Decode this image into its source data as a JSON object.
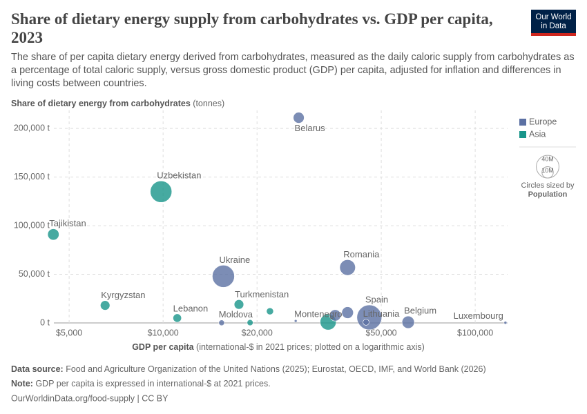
{
  "chart_data": {
    "type": "scatter",
    "title": "Share of dietary energy supply from carbohydrates vs. GDP per capita, 2023",
    "subtitle": "The share of per capita dietary energy derived from carbohydrates, measured as the daily caloric supply from carbohydrates as a percentage of total caloric supply, versus gross domestic product (GDP) per capita, adjusted for inflation and differences in living costs between countries.",
    "logo": [
      "Our World",
      "in Data"
    ],
    "y_label": "Share of dietary energy from carbohydrates",
    "y_unit": " (tonnes)",
    "x_label": "GDP per capita",
    "x_unit": " (international-$ in 2021 prices; plotted on a logarithmic axis)",
    "x_log": true,
    "grid": true,
    "xlim": [
      4467,
      127000
    ],
    "ylim": [
      0,
      215000
    ],
    "xticks": [
      {
        "value": 5000,
        "label": "$5,000"
      },
      {
        "value": 10000,
        "label": "$10,000"
      },
      {
        "value": 20000,
        "label": "$20,000"
      },
      {
        "value": 50000,
        "label": "$50,000"
      },
      {
        "value": 100000,
        "label": "$100,000"
      }
    ],
    "yticks": [
      {
        "value": 0,
        "label": "0 t"
      },
      {
        "value": 50000,
        "label": "50,000 t"
      },
      {
        "value": 100000,
        "label": "100,000 t"
      },
      {
        "value": 150000,
        "label": "150,000 t"
      },
      {
        "value": 200000,
        "label": "200,000 t"
      }
    ],
    "legend": "right",
    "series": [
      {
        "name": "Europe",
        "color": "#5b70a3",
        "labels": [
          "Belarus",
          "Ukraine",
          "Romania",
          "Moldova",
          "Montenegro",
          null,
          null,
          "Spain",
          "Lithuania",
          "Belgium",
          "Luxembourg"
        ],
        "x": [
          27200,
          15600,
          39000,
          15400,
          26600,
          35600,
          39000,
          45800,
          44700,
          61000,
          125000
        ],
        "values": [
          211000,
          48000,
          57000,
          100,
          2000,
          7800,
          10600,
          5700,
          700,
          700,
          200
        ],
        "sizes": [
          9.2,
          38,
          19,
          2.5,
          0.6,
          10,
          10.5,
          48,
          2.9,
          11.8,
          0.65
        ]
      },
      {
        "name": "Asia",
        "color": "#18958a",
        "labels": [
          "Uzbekistan",
          "Tajikistan",
          "Kyrgyzstan",
          "Turkmenistan",
          "Lebanon",
          null,
          null,
          null
        ],
        "x": [
          9850,
          4450,
          6520,
          17500,
          11100,
          19000,
          22000,
          33800
        ],
        "values": [
          135000,
          91000,
          18000,
          19000,
          5000,
          300,
          12000,
          1000
        ],
        "sizes": [
          36,
          10,
          7,
          7,
          5.5,
          2.8,
          3.8,
          20
        ]
      }
    ],
    "size_legend": {
      "values": [
        {
          "value": 40,
          "label": "40M"
        },
        {
          "value": 10,
          "label": "10M"
        }
      ],
      "title": "Circles sized by",
      "variable": "Population"
    },
    "footer": {
      "source_label": "Data source:",
      "source": " Food and Agriculture Organization of the United Nations (2025); Eurostat, OECD, IMF, and World Bank (2026)",
      "note_label": "Note:",
      "note": " GDP per capita is expressed in international-$ at 2021 prices.",
      "url": "OurWorldinData.org/food-supply | CC BY"
    }
  }
}
